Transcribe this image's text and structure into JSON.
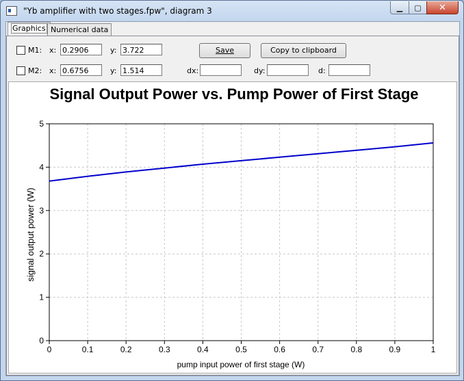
{
  "window": {
    "title": "\"Yb amplifier with two stages.fpw\", diagram 3",
    "minimize_glyph": "▁",
    "maximize_glyph": "▢",
    "close_glyph": "✕"
  },
  "tabs": [
    {
      "label": "Graphics",
      "active": true
    },
    {
      "label": "Numerical data",
      "active": false
    }
  ],
  "markers": {
    "m1": {
      "label": "M1:",
      "x_label": "x:",
      "x_value": "0.2906",
      "y_label": "y:",
      "y_value": "3.722",
      "checked": false
    },
    "m2": {
      "label": "M2:",
      "x_label": "x:",
      "x_value": "0.6756",
      "y_label": "y:",
      "y_value": "1.514",
      "checked": false
    },
    "dx_label": "dx:",
    "dx_value": "",
    "dy_label": "dy:",
    "dy_value": "",
    "d_label": "d:",
    "d_value": ""
  },
  "buttons": {
    "save_label": "Save",
    "copy_label": "Copy to clipboard"
  },
  "chart_data": {
    "type": "line",
    "title": "Signal Output Power vs. Pump Power of First Stage",
    "xlabel": "pump input power of first stage (W)",
    "ylabel": "signal output power (W)",
    "xlim": [
      0,
      1
    ],
    "ylim": [
      0,
      5
    ],
    "xticks": [
      "0",
      "0.1",
      "0.2",
      "0.3",
      "0.4",
      "0.5",
      "0.6",
      "0.7",
      "0.8",
      "0.9",
      "1"
    ],
    "yticks": [
      "0",
      "1",
      "2",
      "3",
      "4",
      "5"
    ],
    "grid": true,
    "series": [
      {
        "color": "#0000cc",
        "x": [
          0,
          0.1,
          0.2,
          0.3,
          0.4,
          0.5,
          0.6,
          0.7,
          0.8,
          0.9,
          1.0
        ],
        "y": [
          3.68,
          3.79,
          3.89,
          3.98,
          4.07,
          4.15,
          4.23,
          4.31,
          4.39,
          4.47,
          4.56
        ]
      }
    ]
  }
}
